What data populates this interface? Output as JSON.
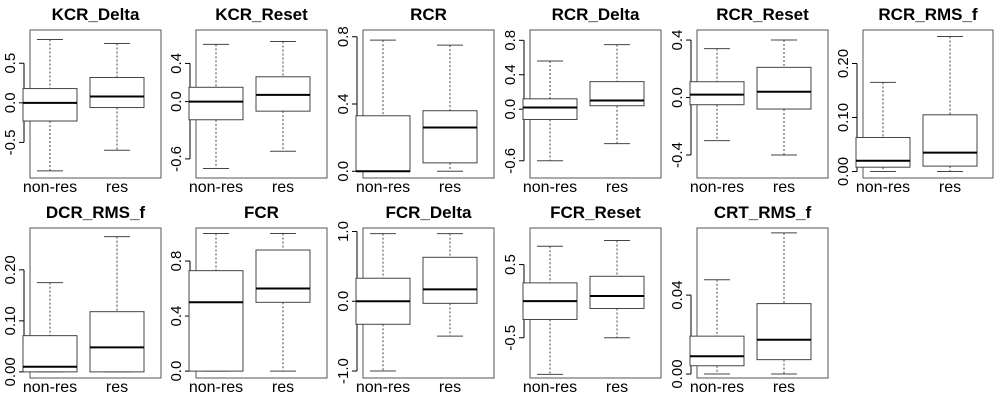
{
  "chart_data": [
    {
      "type": "boxplot",
      "title": "KCR_Delta",
      "categories": [
        "non-res",
        "res"
      ],
      "yticks": [
        "-0.5",
        "0.0",
        "0.5"
      ],
      "ylim": [
        -0.95,
        0.92
      ],
      "boxes": [
        {
          "min": -0.86,
          "q1": -0.23,
          "median": 0.0,
          "q3": 0.18,
          "max": 0.8
        },
        {
          "min": -0.6,
          "q1": -0.06,
          "median": 0.08,
          "q3": 0.32,
          "max": 0.75
        }
      ]
    },
    {
      "type": "boxplot",
      "title": "KCR_Reset",
      "categories": [
        "non-res",
        "res"
      ],
      "yticks": [
        "-0.6",
        "0.0",
        "0.4"
      ],
      "ylim": [
        -0.8,
        0.75
      ],
      "boxes": [
        {
          "min": -0.7,
          "q1": -0.19,
          "median": 0.0,
          "q3": 0.15,
          "max": 0.6
        },
        {
          "min": -0.52,
          "q1": -0.1,
          "median": 0.07,
          "q3": 0.26,
          "max": 0.63
        }
      ]
    },
    {
      "type": "boxplot",
      "title": "RCR",
      "categories": [
        "non-res",
        "res"
      ],
      "yticks": [
        "0.0",
        "0.4",
        "0.8"
      ],
      "ylim": [
        -0.04,
        0.84
      ],
      "boxes": [
        {
          "min": 0.0,
          "q1": 0.0,
          "median": 0.0,
          "q3": 0.33,
          "max": 0.78
        },
        {
          "min": 0.0,
          "q1": 0.05,
          "median": 0.26,
          "q3": 0.36,
          "max": 0.75
        }
      ]
    },
    {
      "type": "boxplot",
      "title": "RCR_Delta",
      "categories": [
        "non-res",
        "res"
      ],
      "yticks": [
        "-0.6",
        "0.0",
        "0.4",
        "0.8"
      ],
      "ylim": [
        -0.8,
        0.92
      ],
      "boxes": [
        {
          "min": -0.6,
          "q1": -0.12,
          "median": 0.02,
          "q3": 0.12,
          "max": 0.56
        },
        {
          "min": -0.4,
          "q1": 0.04,
          "median": 0.1,
          "q3": 0.32,
          "max": 0.75
        }
      ]
    },
    {
      "type": "boxplot",
      "title": "RCR_Reset",
      "categories": [
        "non-res",
        "res"
      ],
      "yticks": [
        "-0.4",
        "0.0",
        "0.4"
      ],
      "ylim": [
        -0.56,
        0.47
      ],
      "boxes": [
        {
          "min": -0.3,
          "q1": -0.05,
          "median": 0.02,
          "q3": 0.11,
          "max": 0.34
        },
        {
          "min": -0.4,
          "q1": -0.08,
          "median": 0.04,
          "q3": 0.21,
          "max": 0.4
        }
      ]
    },
    {
      "type": "boxplot",
      "title": "RCR_RMS_f",
      "categories": [
        "non-res",
        "res"
      ],
      "yticks": [
        "0.00",
        "0.10",
        "0.20"
      ],
      "ylim": [
        -0.012,
        0.262
      ],
      "boxes": [
        {
          "min": 0.0,
          "q1": 0.008,
          "median": 0.02,
          "q3": 0.063,
          "max": 0.165
        },
        {
          "min": 0.0,
          "q1": 0.01,
          "median": 0.035,
          "q3": 0.105,
          "max": 0.25
        }
      ]
    },
    {
      "type": "boxplot",
      "title": "DCR_RMS_f",
      "categories": [
        "non-res",
        "res"
      ],
      "yticks": [
        "0.00",
        "0.10",
        "0.20"
      ],
      "ylim": [
        -0.012,
        0.282
      ],
      "boxes": [
        {
          "min": 0.0,
          "q1": 0.0,
          "median": 0.01,
          "q3": 0.071,
          "max": 0.175
        },
        {
          "min": 0.0,
          "q1": 0.0,
          "median": 0.048,
          "q3": 0.118,
          "max": 0.265
        }
      ]
    },
    {
      "type": "boxplot",
      "title": "FCR",
      "categories": [
        "non-res",
        "res"
      ],
      "yticks": [
        "0.0",
        "0.4",
        "0.8"
      ],
      "ylim": [
        -0.05,
        1.04
      ],
      "boxes": [
        {
          "min": 0.0,
          "q1": 0.0,
          "median": 0.5,
          "q3": 0.73,
          "max": 1.0
        },
        {
          "min": 0.0,
          "q1": 0.5,
          "median": 0.6,
          "q3": 0.88,
          "max": 1.0
        }
      ]
    },
    {
      "type": "boxplot",
      "title": "FCR_Delta",
      "categories": [
        "non-res",
        "res"
      ],
      "yticks": [
        "-1.0",
        "0.0",
        "1.0"
      ],
      "ylim": [
        -1.1,
        1.05
      ],
      "boxes": [
        {
          "min": -1.0,
          "q1": -0.33,
          "median": 0.0,
          "q3": 0.33,
          "max": 0.97
        },
        {
          "min": -0.5,
          "q1": -0.03,
          "median": 0.17,
          "q3": 0.63,
          "max": 0.97
        }
      ]
    },
    {
      "type": "boxplot",
      "title": "FCR_Reset",
      "categories": [
        "non-res",
        "res"
      ],
      "yticks": [
        "-0.5",
        "0.5"
      ],
      "ylim": [
        -1.05,
        1.0
      ],
      "boxes": [
        {
          "min": -1.0,
          "q1": -0.25,
          "median": 0.0,
          "q3": 0.25,
          "max": 0.75
        },
        {
          "min": -0.5,
          "q1": -0.1,
          "median": 0.07,
          "q3": 0.34,
          "max": 0.83
        }
      ]
    },
    {
      "type": "boxplot",
      "title": "CRT_RMS_f",
      "categories": [
        "non-res",
        "res"
      ],
      "yticks": [
        "0.00",
        "0.04"
      ],
      "ylim": [
        -0.002,
        0.074
      ],
      "boxes": [
        {
          "min": 0.0,
          "q1": 0.0042,
          "median": 0.009,
          "q3": 0.0192,
          "max": 0.0478
        },
        {
          "min": 0.0,
          "q1": 0.0073,
          "median": 0.0174,
          "q3": 0.0357,
          "max": 0.0715
        }
      ]
    }
  ]
}
